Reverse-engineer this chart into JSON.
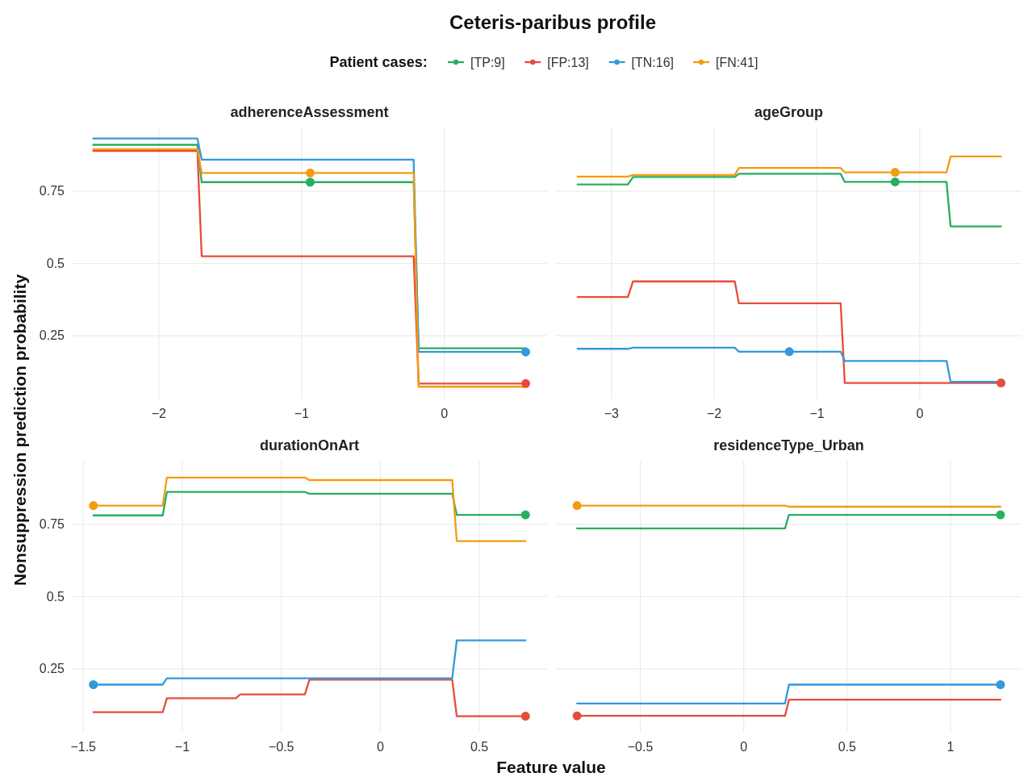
{
  "chart_data": [
    {
      "type": "line",
      "title": "Ceteris-paribus profile",
      "subtitle": "adherenceAssessment",
      "ylabel": "Nonsuppression prediction probability",
      "legend_title": "Patient cases:",
      "legend": "top",
      "grid": true,
      "tick_labels": true,
      "xlim": [
        -2.61,
        0.72
      ],
      "xticks": [
        {
          "value": -2,
          "label": "−2"
        },
        {
          "value": -1,
          "label": "−1"
        },
        0
      ],
      "ylim": [
        0.03,
        0.97
      ],
      "yticks": [
        0.25,
        0.5,
        0.75
      ],
      "x": [
        -2.46,
        -1.73,
        -1.7,
        -0.215,
        -0.18,
        0.57
      ],
      "series": [
        {
          "name": "[TP:9]",
          "color": "#27ae60",
          "values": [
            0.91,
            0.91,
            0.781,
            0.781,
            0.207,
            0.207
          ]
        },
        {
          "name": "[FP:13]",
          "color": "#e74c3c",
          "values": [
            0.889,
            0.889,
            0.525,
            0.525,
            0.085,
            0.085
          ]
        },
        {
          "name": "[TN:16]",
          "color": "#3498db",
          "values": [
            0.932,
            0.932,
            0.859,
            0.859,
            0.194,
            0.194
          ]
        },
        {
          "name": "[FN:41]",
          "color": "#f39c12",
          "values": [
            0.895,
            0.895,
            0.813,
            0.813,
            0.074,
            0.074
          ]
        },
        {
          "type": "scatter",
          "marker": "circle",
          "x": [
            -0.94,
            -0.94,
            0.57,
            0.57
          ],
          "values": [
            0.781,
            0.813,
            0.194,
            0.085
          ],
          "colors": [
            "#27ae60",
            "#f39c12",
            "#3498db",
            "#e74c3c"
          ]
        }
      ]
    },
    {
      "type": "line",
      "subtitle": "ageGroup",
      "grid": true,
      "tick_labels": "x",
      "xlim": [
        -3.54,
        0.99
      ],
      "xticks": [
        {
          "value": -3,
          "label": "−3"
        },
        {
          "value": -2,
          "label": "−2"
        },
        {
          "value": -1,
          "label": "−1"
        },
        0
      ],
      "ylim": [
        0.03,
        0.97
      ],
      "yticks": [
        0.25,
        0.5,
        0.75
      ],
      "x": [
        -3.33,
        -2.84,
        -2.79,
        -1.8,
        -1.76,
        -0.77,
        -0.73,
        0.26,
        0.3,
        0.79
      ],
      "series": [
        {
          "color": "#27ae60",
          "values": [
            0.773,
            0.773,
            0.799,
            0.799,
            0.81,
            0.81,
            0.782,
            0.782,
            0.628,
            0.628
          ]
        },
        {
          "color": "#e74c3c",
          "values": [
            0.384,
            0.384,
            0.438,
            0.438,
            0.362,
            0.362,
            0.087,
            0.087,
            0.087,
            0.087
          ]
        },
        {
          "color": "#3498db",
          "values": [
            0.205,
            0.205,
            0.209,
            0.209,
            0.195,
            0.195,
            0.163,
            0.163,
            0.091,
            0.091
          ]
        },
        {
          "color": "#f39c12",
          "values": [
            0.8,
            0.8,
            0.806,
            0.806,
            0.83,
            0.83,
            0.815,
            0.815,
            0.87,
            0.87
          ]
        },
        {
          "type": "scatter",
          "marker": "circle",
          "x": [
            -0.24,
            -0.24,
            -1.27,
            0.79
          ],
          "values": [
            0.782,
            0.815,
            0.195,
            0.087
          ],
          "colors": [
            "#27ae60",
            "#f39c12",
            "#3498db",
            "#e74c3c"
          ]
        }
      ]
    },
    {
      "type": "line",
      "subtitle": "durationOnArt",
      "xlabel": "Feature value",
      "grid": true,
      "tick_labels": true,
      "xlim": [
        -1.558,
        0.842
      ],
      "xticks": [
        {
          "value": -1.5,
          "label": "−1.5"
        },
        {
          "value": -1,
          "label": "−1"
        },
        {
          "value": -0.5,
          "label": "−0.5"
        },
        0,
        0.5
      ],
      "ylim": [
        0.03,
        0.97
      ],
      "yticks": [
        0.25,
        0.5,
        0.75
      ],
      "x": [
        -1.449,
        -1.099,
        -1.078,
        -0.73,
        -0.708,
        -0.381,
        -0.358,
        0.363,
        0.386,
        0.733
      ],
      "series": [
        {
          "color": "#27ae60",
          "values": [
            0.781,
            0.781,
            0.862,
            0.862,
            0.862,
            0.862,
            0.856,
            0.856,
            0.783,
            0.783
          ]
        },
        {
          "color": "#e74c3c",
          "values": [
            0.101,
            0.101,
            0.149,
            0.149,
            0.162,
            0.162,
            0.213,
            0.213,
            0.087,
            0.087
          ]
        },
        {
          "color": "#3498db",
          "values": [
            0.196,
            0.196,
            0.218,
            0.218,
            0.218,
            0.218,
            0.218,
            0.218,
            0.349,
            0.349
          ]
        },
        {
          "color": "#f39c12",
          "values": [
            0.815,
            0.815,
            0.912,
            0.912,
            0.912,
            0.912,
            0.903,
            0.903,
            0.692,
            0.692
          ]
        },
        {
          "type": "scatter",
          "marker": "circle",
          "x": [
            -1.449,
            -1.449,
            0.733,
            0.733
          ],
          "values": [
            0.815,
            0.196,
            0.783,
            0.087
          ],
          "colors": [
            "#f39c12",
            "#3498db",
            "#27ae60",
            "#e74c3c"
          ]
        }
      ]
    },
    {
      "type": "line",
      "subtitle": "residenceType_Urban",
      "grid": true,
      "tick_labels": "x",
      "xlim": [
        -0.908,
        1.344
      ],
      "xticks": [
        {
          "value": -0.5,
          "label": "−0.5"
        },
        0,
        0.5,
        1
      ],
      "ylim": [
        0.03,
        0.97
      ],
      "yticks": [
        0.25,
        0.5,
        0.75
      ],
      "x": [
        -0.806,
        0.2,
        0.219,
        1.242
      ],
      "series": [
        {
          "color": "#27ae60",
          "values": [
            0.736,
            0.736,
            0.783,
            0.783
          ]
        },
        {
          "color": "#e74c3c",
          "values": [
            0.088,
            0.088,
            0.144,
            0.144
          ]
        },
        {
          "color": "#3498db",
          "values": [
            0.131,
            0.131,
            0.196,
            0.196
          ]
        },
        {
          "color": "#f39c12",
          "values": [
            0.815,
            0.815,
            0.811,
            0.811
          ]
        },
        {
          "type": "scatter",
          "marker": "circle",
          "x": [
            -0.806,
            -0.806,
            1.242,
            1.242
          ],
          "values": [
            0.815,
            0.088,
            0.783,
            0.196
          ],
          "colors": [
            "#f39c12",
            "#e74c3c",
            "#27ae60",
            "#3498db"
          ]
        }
      ]
    }
  ]
}
